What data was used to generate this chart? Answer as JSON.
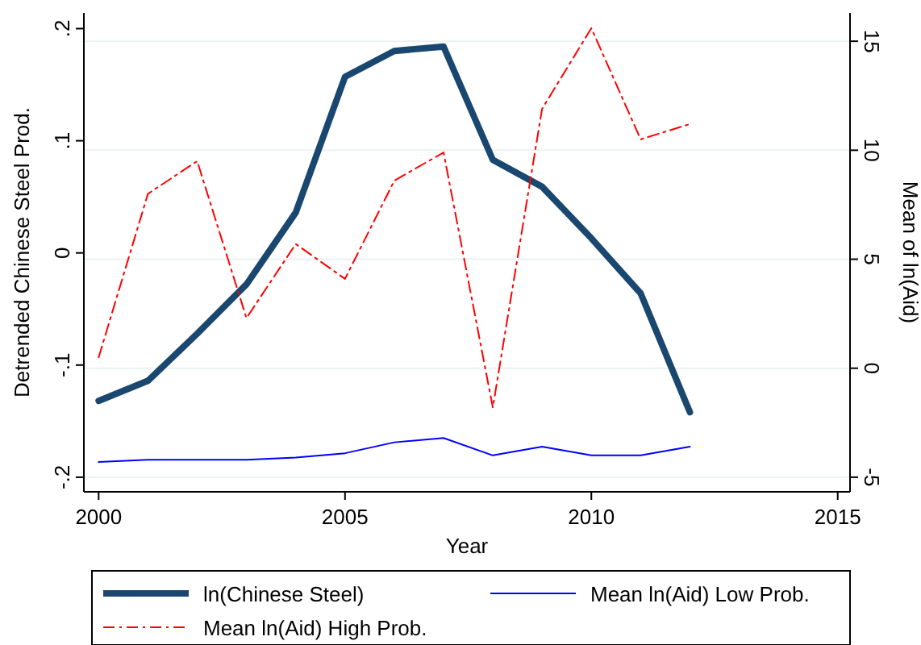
{
  "chart_data": {
    "type": "line",
    "xlabel": "Year",
    "ylabel": "Detrended Chinese Steel Prod.",
    "y2label": "Mean of ln(Aid)",
    "x": [
      2000,
      2001,
      2002,
      2003,
      2004,
      2005,
      2006,
      2007,
      2008,
      2009,
      2010,
      2011,
      2012
    ],
    "series": [
      {
        "name": "ln(Chinese Steel)",
        "color": "#1a476f",
        "line_style": "solid",
        "values": [
          -0.132,
          -0.114,
          -0.072,
          -0.028,
          0.036,
          0.157,
          0.18,
          0.184,
          0.083,
          0.059,
          0.013,
          -0.036,
          -0.142
        ]
      },
      {
        "name": "Mean ln(Aid) Low Prob.",
        "color": "#0000ff",
        "line_style": "solid",
        "axis": "y2",
        "values": [
          -4.3,
          -4.2,
          -4.2,
          -4.2,
          -4.1,
          -3.9,
          -3.4,
          -3.2,
          -4.0,
          -3.6,
          -4.0,
          -4.0,
          -3.6
        ]
      },
      {
        "name": "Mean ln(Aid) High Prob.",
        "color": "#ff0000",
        "line_style": "dashed",
        "axis": "y2",
        "values": [
          0.5,
          8.0,
          9.5,
          2.3,
          5.7,
          4.1,
          8.6,
          9.9,
          -1.8,
          11.9,
          15.6,
          10.5,
          11.2
        ]
      }
    ],
    "xlim": [
      1999.7,
      2015.25
    ],
    "xticks": [
      2000,
      2005,
      2010,
      2015
    ],
    "ylim": [
      -0.213,
      0.214
    ],
    "yticks": [
      {
        "value": -0.2,
        "label": "-.2"
      },
      {
        "value": -0.1,
        "label": "-.1"
      },
      0,
      {
        "value": 0.1,
        "label": ".1"
      },
      {
        "value": 0.2,
        "label": ".2"
      }
    ],
    "y2lim": [
      -5.67,
      16.3
    ],
    "y2ticks": [
      -5,
      0,
      5,
      10,
      15
    ],
    "grid": true,
    "legend": "bottom"
  }
}
